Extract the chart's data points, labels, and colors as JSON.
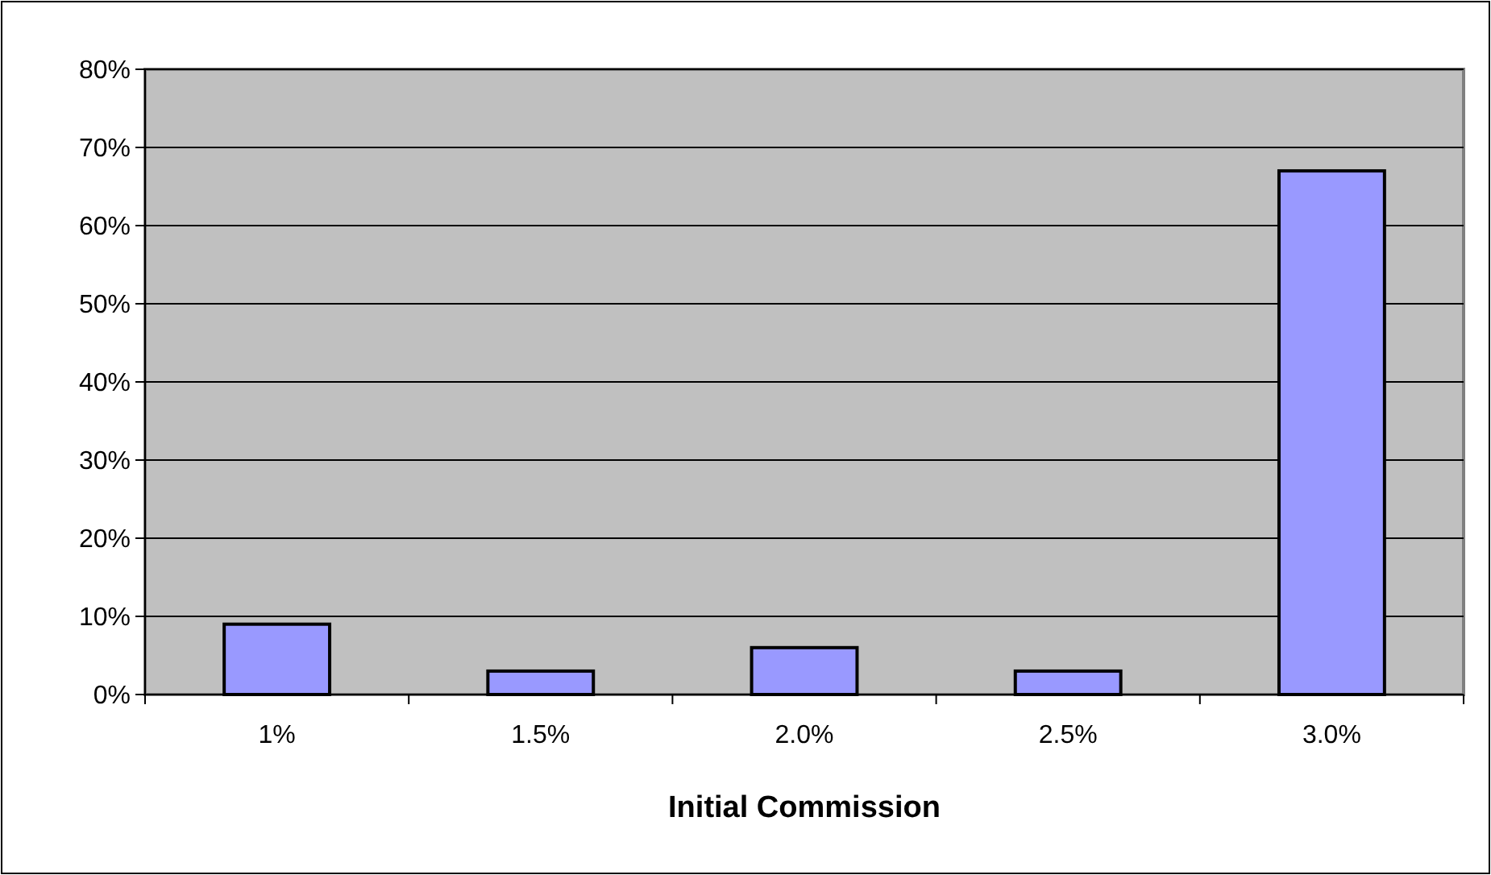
{
  "chart_data": {
    "type": "bar",
    "xlabel": "Initial Commission",
    "categories": [
      "1%",
      "1.5%",
      "2.0%",
      "2.5%",
      "3.0%"
    ],
    "values": [
      9,
      3,
      6,
      3,
      67
    ],
    "color": "#9999ff",
    "ylim": [
      0,
      80
    ],
    "yticks": [
      {
        "value": 0,
        "label": "0%"
      },
      {
        "value": 10,
        "label": "10%"
      },
      {
        "value": 20,
        "label": "20%"
      },
      {
        "value": 30,
        "label": "30%"
      },
      {
        "value": 40,
        "label": "40%"
      },
      {
        "value": 50,
        "label": "50%"
      },
      {
        "value": 60,
        "label": "60%"
      },
      {
        "value": 70,
        "label": "70%"
      },
      {
        "value": 80,
        "label": "80%"
      }
    ],
    "grid": "y"
  }
}
